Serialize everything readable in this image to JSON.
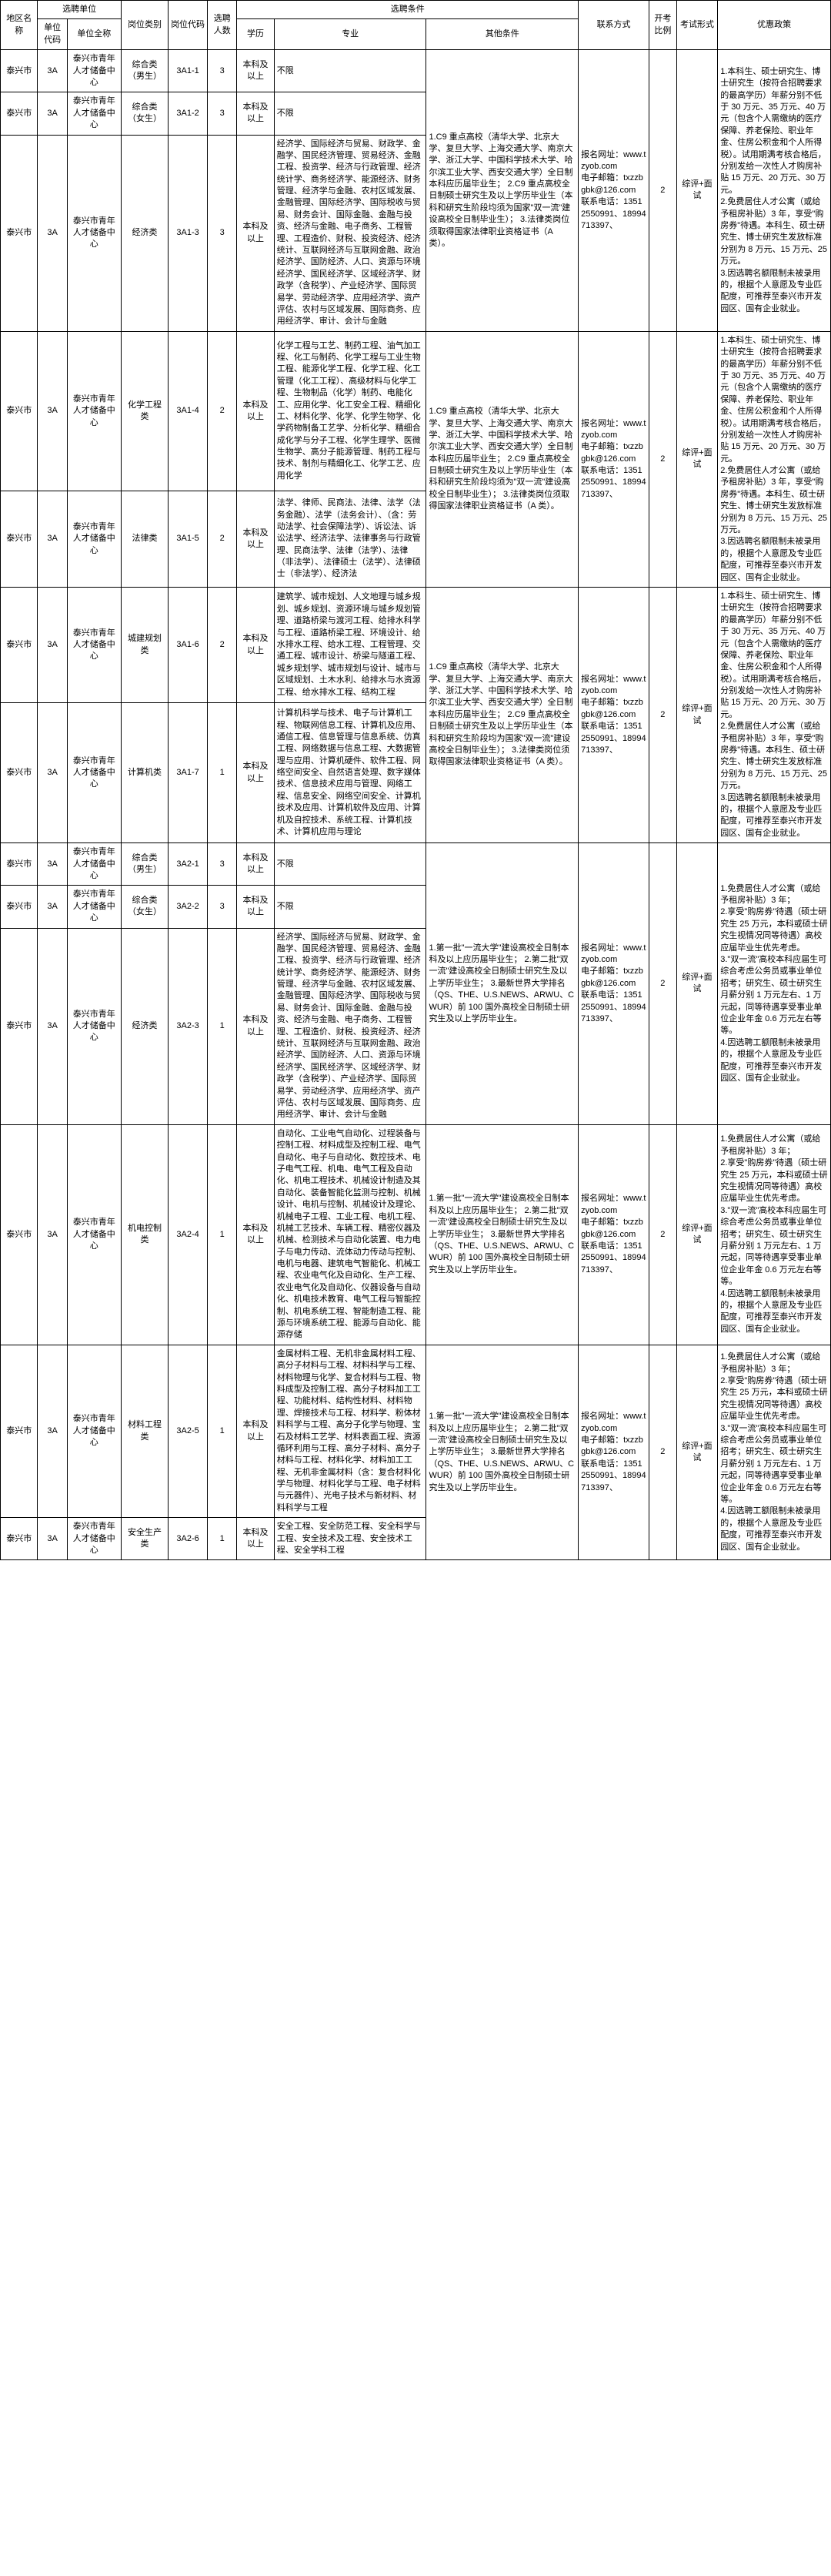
{
  "headers": {
    "region": "地区名称",
    "unit": "选聘单位",
    "unit_code": "单位代码",
    "unit_name": "单位全称",
    "pos_cat": "岗位类别",
    "pos_code": "岗位代码",
    "count": "选聘人数",
    "cond": "选聘条件",
    "edu": "学历",
    "major": "专业",
    "other": "其他条件",
    "contact": "联系方式",
    "ratio": "开考比例",
    "exam": "考试形式",
    "policy": "优惠政策"
  },
  "rows": [
    {
      "region": "泰兴市",
      "ucode": "3A",
      "uname": "泰兴市青年人才储备中心",
      "pcat": "综合类（男生）",
      "pcode": "3A1-1",
      "count": "3",
      "edu": "本科及以上",
      "major": "不限",
      "other": "",
      "contact": "报名网址：www.tzyob.com\n电子邮箱：txzzbgbk@126.com\n联系电话：13512550991、18994713397、",
      "ratio": "2",
      "exam": "综评+面试",
      "policy": "1.本科生、硕士研究生、博士研究生（按符合招聘要求的最高学历）年薪分别不低于 30 万元、35 万元、40 万元（包含个人需缴纳的医疗保障、养老保险、职业年金、住房公积金和个人所得税）。试用期满考核合格后，分别发给一次性人才购房补贴 15 万元、20 万元、30 万元。\n2.免费居住人才公寓（或给予租房补贴）3 年，享受\"购房券\"待遇。本科生、硕士研究生、博士研究生发放标准分别为 8 万元、15 万元、25 万元。\n3.因选聘名额限制未被录用的，根据个人意愿及专业匹配度，可推荐至泰兴市开发园区、国有企业就业。"
    },
    {
      "region": "泰兴市",
      "ucode": "3A",
      "uname": "泰兴市青年人才储备中心",
      "pcat": "综合类（女生）",
      "pcode": "3A1-2",
      "count": "3",
      "edu": "本科及以上",
      "major": "不限",
      "other": ""
    },
    {
      "region": "泰兴市",
      "ucode": "3A",
      "uname": "泰兴市青年人才储备中心",
      "pcat": "经济类",
      "pcode": "3A1-3",
      "count": "3",
      "edu": "本科及以上",
      "major": "经济学、国际经济与贸易、财政学、金融学、国民经济管理、贸易经济、金融工程、投资学、经济与行政管理、经济统计学、商务经济学、能源经济、财务管理、经济学与金融、农村区域发展、金融管理、国际经济学、国际税收与贸易、财务会计、国际金融、金融与投资、经济与金融、电子商务、工程管理、工程造价、财税、投资经济、经济统计、互联网经济与互联网金融、政治经济学、国防经济、人口、资源与环境经济学、国民经济学、区域经济学、财政学（含税学）、产业经济学、国际贸易学、劳动经济学、应用经济学、资产评估、农村与区域发展、国际商务、应用经济学、审计、会计与金融",
      "other": "1.C9 重点高校（清华大学、北京大学、复旦大学、上海交通大学、南京大学、浙江大学、中国科学技术大学、哈尔滨工业大学、西安交通大学）全日制本科应历届毕业生；\n2.C9 重点高校全日制硕士研究生及以上学历毕业生（本科和研究生阶段均须为国家\"双一流\"建设高校全日制毕业生）；\n3.法律类岗位须取得国家法律职业资格证书（A 类）。"
    },
    {
      "region": "泰兴市",
      "ucode": "3A",
      "uname": "泰兴市青年人才储备中心",
      "pcat": "化学工程类",
      "pcode": "3A1-4",
      "count": "2",
      "edu": "本科及以上",
      "major": "化学工程与工艺、制药工程、油气加工程、化工与制药、化学工程与工业生物工程、能源化学工程、化学工程、化工管理（化工工程）、高级材料与化学工程、生物制品（化学）制药、电能化工、应用化学、化工安全工程、精细化工、材料化学、化学、化学生物学、化学药物制备工艺学、分析化学、精细合成化学与分子工程、化学生理学、医微生物学、高分子能源管理、制药工程与技术、制剂与精细化工、化学工艺、应用化学",
      "other": "1.C9 重点高校（清华大学、北京大学、复旦大学、上海交通大学、南京大学、浙江大学、中国科学技术大学、哈尔滨工业大学、西安交通大学）全日制本科应历届毕业生；\n2.C9 重点高校全日制硕士研究生及以上学历毕业生（本科和研究生阶段均须为\"双一流\"建设高校全日制毕业生）；\n3.法律类岗位须取得国家法律职业资格证书（A 类）。",
      "contact": "报名网址：www.tzyob.com\n电子邮箱：txzzbgbk@126.com\n联系电话：13512550991、18994713397、",
      "ratio": "2",
      "exam": "综评+面试",
      "policy": "1.本科生、硕士研究生、博士研究生（按符合招聘要求的最高学历）年薪分别不低于 30 万元、35 万元、40 万元（包含个人需缴纳的医疗保障、养老保险、职业年金、住房公积金和个人所得税）。试用期满考核合格后，分别发给一次性人才购房补贴 15 万元、20 万元、30 万元。\n2.免费居住人才公寓（或给予租房补贴）3 年，享受\"购房券\"待遇。本科生、硕士研究生、博士研究生发放标准分别为 8 万元、15 万元、25 万元。\n3.因选聘名额限制未被录用的，根据个人意愿及专业匹配度，可推荐至泰兴市开发园区、国有企业就业。"
    },
    {
      "region": "泰兴市",
      "ucode": "3A",
      "uname": "泰兴市青年人才储备中心",
      "pcat": "法律类",
      "pcode": "3A1-5",
      "count": "2",
      "edu": "本科及以上",
      "major": "法学、律师、民商法、法律、法学（法务金融）、法学（法务会计）、（含：劳动法学、社会保障法学）、诉讼法、诉讼法学、经济法学、法律事务与行政管理、民商法学、法律（法学）、法律（非法学）、法律硕士（法学）、法律硕士（非法学）、经济法",
      "other": ""
    },
    {
      "region": "泰兴市",
      "ucode": "3A",
      "uname": "泰兴市青年人才储备中心",
      "pcat": "城建规划类",
      "pcode": "3A1-6",
      "count": "2",
      "edu": "本科及以上",
      "major": "建筑学、城市规划、人文地理与城乡规划、城乡规划、资源环境与城乡规划管理、道路桥梁与渡河工程、给排水科学与工程、道路桥梁工程、环境设计、给水排水工程、给水工程、工程管理、交通工程、城市设计、桥梁与隧道工程、城乡规划学、城市规划与设计、城市与区域规划、土木水利、给排水与水资源工程、给水排水工程、结构工程",
      "other": "1.C9 重点高校（清华大学、北京大学、复旦大学、上海交通大学、南京大学、浙江大学、中国科学技术大学、哈尔滨工业大学、西安交通大学）全日制本科应历届毕业生；\n2.C9 重点高校全日制硕士研究生及以上学历毕业生（本科和研究生阶段均为国家\"双一流\"建设高校全日制毕业生）；\n3.法律类岗位须取得国家法律职业资格证书（A 类）。",
      "contact": "报名网址：www.tzyob.com\n电子邮箱：txzzbgbk@126.com\n联系电话：13512550991、18994713397、",
      "ratio": "2",
      "exam": "综评+面试",
      "policy": "1.本科生、硕士研究生、博士研究生（按符合招聘要求的最高学历）年薪分别不低于 30 万元、35 万元、40 万元（包含个人需缴纳的医疗保障、养老保险、职业年金、住房公积金和个人所得税）。试用期满考核合格后，分别发给一次性人才购房补贴 15 万元、20 万元、30 万元。\n2.免费居住人才公寓（或给予租房补贴）3 年，享受\"购房券\"待遇。本科生、硕士研究生、博士研究生发放标准分别为 8 万元、15 万元、25 万元。\n3.因选聘名额限制未被录用的，根据个人意愿及专业匹配度，可推荐至泰兴市开发园区、国有企业就业。"
    },
    {
      "region": "泰兴市",
      "ucode": "3A",
      "uname": "泰兴市青年人才储备中心",
      "pcat": "计算机类",
      "pcode": "3A1-7",
      "count": "1",
      "edu": "本科及以上",
      "major": "计算机科学与技术、电子与计算机工程、物联网信息工程、计算机及应用、通信工程、信息管理与信息系统、仿真工程、网络数据与信息工程、大数据管理与应用、计算机硬件、软件工程、网络空间安全、自然语言处理、数字媒体技术、信息技术应用与管理、网络工程、信息安全、网络空间安全、计算机技术及应用、计算机软件及应用、计算机及自控技术、系统工程、计算机技术、计算机应用与理论",
      "other": ""
    },
    {
      "region": "泰兴市",
      "ucode": "3A",
      "uname": "泰兴市青年人才储备中心",
      "pcat": "综合类（男生）",
      "pcode": "3A2-1",
      "count": "3",
      "edu": "本科及以上",
      "major": "不限",
      "other": "",
      "contact": "报名网址：www.tzyob.com\n电子邮箱：txzzbgbk@126.com\n联系电话：13512550991、18994713397、",
      "ratio": "2",
      "exam": "综评+面试",
      "policy": "1.免费居住人才公寓（或给予租房补贴）3 年；\n2.享受\"购房券\"待遇（硕士研究生 25 万元，本科或硕士研究生视情况同等待遇）高校应届毕业生优先考虑。\n3.\"双一流\"高校本科应届生可综合考虑公务员或事业单位招考；研究生、硕士研究生月薪分别 1 万元左右、1 万元起，同等待遇享受事业单位企业年金 0.6 万元左右等等。\n4.因选聘工额限制未被录用的，根据个人意愿及专业匹配度，可推荐至泰兴市开发园区、国有企业就业。"
    },
    {
      "region": "泰兴市",
      "ucode": "3A",
      "uname": "泰兴市青年人才储备中心",
      "pcat": "综合类（女生）",
      "pcode": "3A2-2",
      "count": "3",
      "edu": "本科及以上",
      "major": "不限",
      "other": ""
    },
    {
      "region": "泰兴市",
      "ucode": "3A",
      "uname": "泰兴市青年人才储备中心",
      "pcat": "经济类",
      "pcode": "3A2-3",
      "count": "1",
      "edu": "本科及以上",
      "major": "经济学、国际经济与贸易、财政学、金融学、国民经济管理、贸易经济、金融工程、投资学、经济与行政管理、经济统计学、商务经济学、能源经济、财务管理、经济学与金融、农村区域发展、金融管理、国际经济学、国际税收与贸易、财务会计、国际金融、金融与投资、经济与金融、电子商务、工程管理、工程造价、财税、投资经济、经济统计、互联网经济与互联网金融、政治经济学、国防经济、人口、资源与环境经济学、国民经济学、区域经济学、财政学（含税学）、产业经济学、国际贸易学、劳动经济学、应用经济学、资产评估、农村与区域发展、国际商务、应用经济学、审计、会计与金融",
      "other": "1.第一批\"一流大学\"建设高校全日制本科及以上应历届毕业生；\n2.第二批\"双一流\"建设高校全日制硕士研究生及以上学历毕业生；\n3.最新世界大学排名（QS、THE、U.S.NEWS、ARWU、CWUR）前 100 国外高校全日制硕士研究生及以上学历毕业生。"
    },
    {
      "region": "泰兴市",
      "ucode": "3A",
      "uname": "泰兴市青年人才储备中心",
      "pcat": "机电控制类",
      "pcode": "3A2-4",
      "count": "1",
      "edu": "本科及以上",
      "major": "自动化、工业电气自动化、过程装备与控制工程、材料成型及控制工程、电气自动化、电子与自动化、数控技术、电子电气工程、机电、电气工程及自动化、机电工程技术、机械设计制造及其自动化、装备智能化监测与控制、机械设计、电机与控制、机械设计及理论、机械电子工程、工业工程、电机工程、机械工艺技术、车辆工程、精密仪器及机械、检测技术与自动化装置、电力电子与电力传动、流体动力传动与控制、电机与电器、建筑电气智能化、机械工程、农业电气化及自动化、生产工程、农业电气化及自动化、仪器设备与自动化、机电技术教育、电气工程与智能控制、机电系统工程、智能制造工程、能源与环境系统工程、能源与自动化、能源存储",
      "other": "1.第一批\"一流大学\"建设高校全日制本科及以上应历届毕业生；\n2.第二批\"双一流\"建设高校全日制硕士研究生及以上学历毕业生；\n3.最新世界大学排名（QS、THE、U.S.NEWS、ARWU、CWUR）前 100 国外高校全日制硕士研究生及以上学历毕业生。",
      "contact": "报名网址：www.tzyob.com\n电子邮箱：txzzbgbk@126.com\n联系电话：13512550991、18994713397、",
      "ratio": "2",
      "exam": "综评+面试",
      "policy": "1.免费居住人才公寓（或给予租房补贴）3 年；\n2.享受\"购房券\"待遇（硕士研究生 25 万元，本科或硕士研究生视情况同等待遇）高校应届毕业生优先考虑。\n3.\"双一流\"高校本科应届生可综合考虑公务员或事业单位招考；研究生、硕士研究生月薪分别 1 万元左右、1 万元起，同等待遇享受事业单位企业年金 0.6 万元左右等等。\n4.因选聘工额限制未被录用的，根据个人意愿及专业匹配度，可推荐至泰兴市开发园区、国有企业就业。"
    },
    {
      "region": "泰兴市",
      "ucode": "3A",
      "uname": "泰兴市青年人才储备中心",
      "pcat": "材料工程类",
      "pcode": "3A2-5",
      "count": "1",
      "edu": "本科及以上",
      "major": "金属材料工程、无机非金属材料工程、高分子材料与工程、材料科学与工程、材料物理与化学、复合材料与工程、物料成型及控制工程、高分子材料加工工程、功能材料、结构性材料、材料物理、焊接技术与工程、材料学、粉体材料科学与工程、高分子化学与物理、宝石及材料工艺学、材料表面工程、资源循环利用与工程、高分子材料、高分子材料与工程、材料化学、材料加工工程、无机非金属材料（含：复合材料化学与物理、材料化学与工程、电子材料与元器件）、光电子技术与新材料、材料科学与工程",
      "other": "1.第一批\"一流大学\"建设高校全日制本科及以上应历届毕业生；\n2.第二批\"双一流\"建设高校全日制硕士研究生及以上学历毕业生；\n3.最新世界大学排名（QS、THE、U.S.NEWS、ARWU、CWUR）前 100 国外高校全日制硕士研究生及以上学历毕业生。",
      "contact": "报名网址：www.tzyob.com\n电子邮箱：txzzbgbk@126.com\n联系电话：13512550991、18994713397、",
      "ratio": "2",
      "exam": "综评+面试",
      "policy": "1.免费居住人才公寓（或给予租房补贴）3 年；\n2.享受\"购房券\"待遇（硕士研究生 25 万元，本科或硕士研究生视情况同等待遇）高校应届毕业生优先考虑。\n3.\"双一流\"高校本科应届生可综合考虑公务员或事业单位招考；研究生、硕士研究生月薪分别 1 万元左右、1 万元起，同等待遇享受事业单位企业年金 0.6 万元左右等等。\n4.因选聘工额限制未被录用的，根据个人意愿及专业匹配度，可推荐至泰兴市开发园区、国有企业就业。"
    },
    {
      "region": "泰兴市",
      "ucode": "3A",
      "uname": "泰兴市青年人才储备中心",
      "pcat": "安全生产类",
      "pcode": "3A2-6",
      "count": "1",
      "edu": "本科及以上",
      "major": "安全工程、安全防范工程、安全科学与工程、安全技术及工程、安全技术工程、安全学科工程",
      "other": ""
    }
  ],
  "groups": [
    {
      "start": 0,
      "len": 3
    },
    {
      "start": 3,
      "len": 2
    },
    {
      "start": 5,
      "len": 2
    },
    {
      "start": 7,
      "len": 3
    },
    {
      "start": 10,
      "len": 1
    },
    {
      "start": 11,
      "len": 2
    }
  ]
}
